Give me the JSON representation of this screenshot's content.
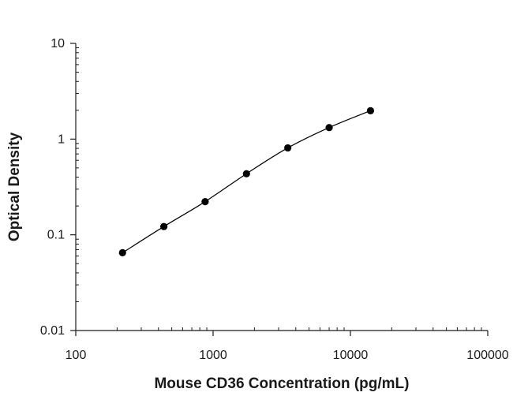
{
  "chart_data": {
    "type": "scatter",
    "title": "",
    "xlabel": "Mouse CD36 Concentration (pg/mL)",
    "ylabel": "Optical Density",
    "x_scale": "log",
    "y_scale": "log",
    "xlim": [
      100,
      100000
    ],
    "ylim": [
      0.01,
      10
    ],
    "x_ticks": [
      "100",
      "1000",
      "10000",
      "100000"
    ],
    "y_ticks": [
      "0.01",
      "0.1",
      "1",
      "10"
    ],
    "grid": false,
    "series": [
      {
        "x": [
          219,
          438,
          875,
          1750,
          3500,
          7000,
          14000
        ],
        "y": [
          0.065,
          0.122,
          0.222,
          0.435,
          0.81,
          1.32,
          1.98
        ],
        "color": "#000000",
        "fit_curve": true
      }
    ]
  }
}
